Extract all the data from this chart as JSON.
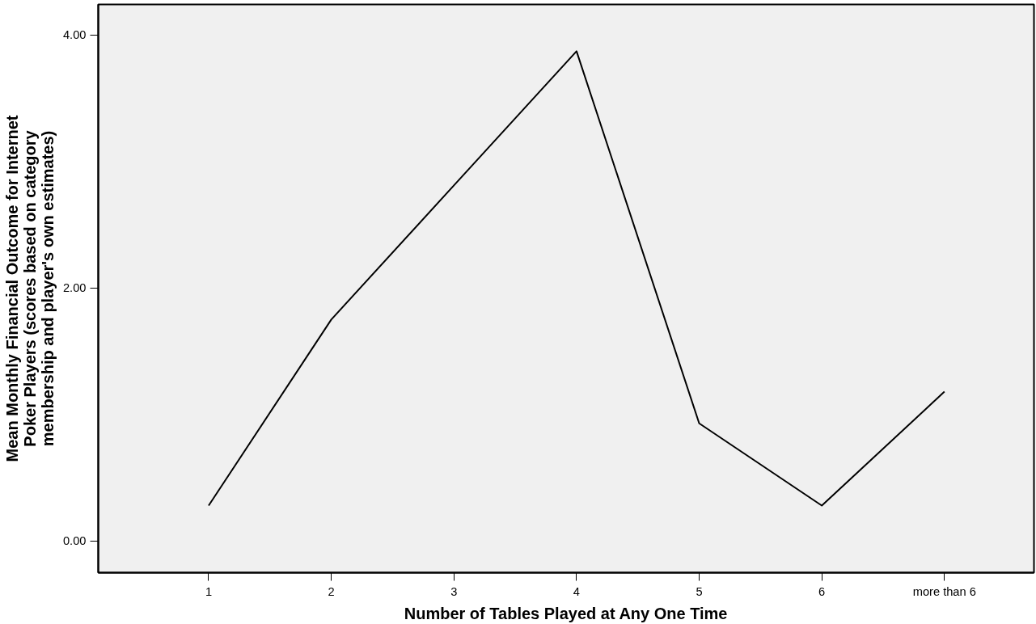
{
  "chart_data": {
    "type": "line",
    "xlabel": "Number of Tables Played at Any One Time",
    "ylabel": "Mean Monthly Financial Outcome for Internet\nPoker Players (scores based on category\nmembership and player's own estimates)",
    "categories": [
      "1",
      "2",
      "3",
      "4",
      "5",
      "6",
      "more than 6"
    ],
    "series": [
      {
        "color": "#000000",
        "values": [
          0.28,
          1.75,
          2.81,
          3.87,
          0.93,
          0.28,
          1.18
        ]
      }
    ],
    "ylim": [
      -0.25,
      4.24
    ],
    "yticks": [
      {
        "value": 0,
        "label": "0.00"
      },
      {
        "value": 2,
        "label": "2.00"
      },
      {
        "value": 4,
        "label": "4.00"
      }
    ],
    "grid": false,
    "marker": "none",
    "line_style": "solid"
  }
}
